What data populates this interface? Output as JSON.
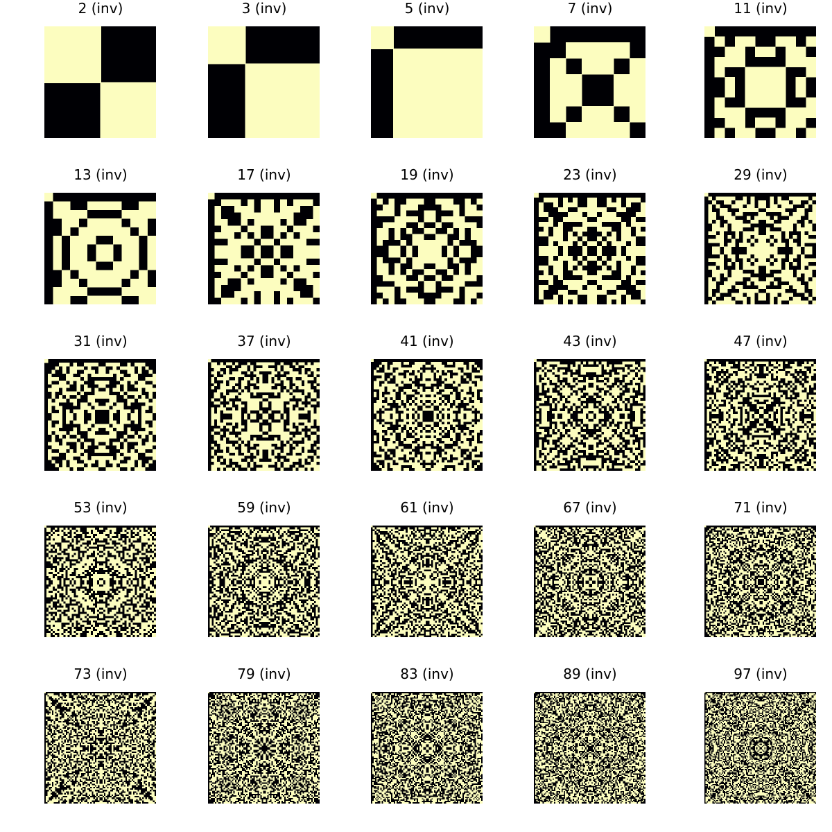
{
  "colors": {
    "off": "#000004",
    "on": "#fcfdbf"
  },
  "rule": "cell(i,j) is 'on' (light) iff (i*i + j*j) mod p is NOT a quadratic residue mod p (inverted), i,j in 0..p-1",
  "chart_data": [
    {
      "type": "heatmap",
      "title": "2 (inv)",
      "p": 2
    },
    {
      "type": "heatmap",
      "title": "3 (inv)",
      "p": 3
    },
    {
      "type": "heatmap",
      "title": "5 (inv)",
      "p": 5
    },
    {
      "type": "heatmap",
      "title": "7 (inv)",
      "p": 7
    },
    {
      "type": "heatmap",
      "title": "11 (inv)",
      "p": 11
    },
    {
      "type": "heatmap",
      "title": "13 (inv)",
      "p": 13
    },
    {
      "type": "heatmap",
      "title": "17 (inv)",
      "p": 17
    },
    {
      "type": "heatmap",
      "title": "19 (inv)",
      "p": 19
    },
    {
      "type": "heatmap",
      "title": "23 (inv)",
      "p": 23
    },
    {
      "type": "heatmap",
      "title": "29 (inv)",
      "p": 29
    },
    {
      "type": "heatmap",
      "title": "31 (inv)",
      "p": 31
    },
    {
      "type": "heatmap",
      "title": "37 (inv)",
      "p": 37
    },
    {
      "type": "heatmap",
      "title": "41 (inv)",
      "p": 41
    },
    {
      "type": "heatmap",
      "title": "43 (inv)",
      "p": 43
    },
    {
      "type": "heatmap",
      "title": "47 (inv)",
      "p": 47
    },
    {
      "type": "heatmap",
      "title": "53 (inv)",
      "p": 53
    },
    {
      "type": "heatmap",
      "title": "59 (inv)",
      "p": 59
    },
    {
      "type": "heatmap",
      "title": "61 (inv)",
      "p": 61
    },
    {
      "type": "heatmap",
      "title": "67 (inv)",
      "p": 67
    },
    {
      "type": "heatmap",
      "title": "71 (inv)",
      "p": 71
    },
    {
      "type": "heatmap",
      "title": "73 (inv)",
      "p": 73
    },
    {
      "type": "heatmap",
      "title": "79 (inv)",
      "p": 79
    },
    {
      "type": "heatmap",
      "title": "83 (inv)",
      "p": 83
    },
    {
      "type": "heatmap",
      "title": "89 (inv)",
      "p": 89
    },
    {
      "type": "heatmap",
      "title": "97 (inv)",
      "p": 97
    }
  ]
}
